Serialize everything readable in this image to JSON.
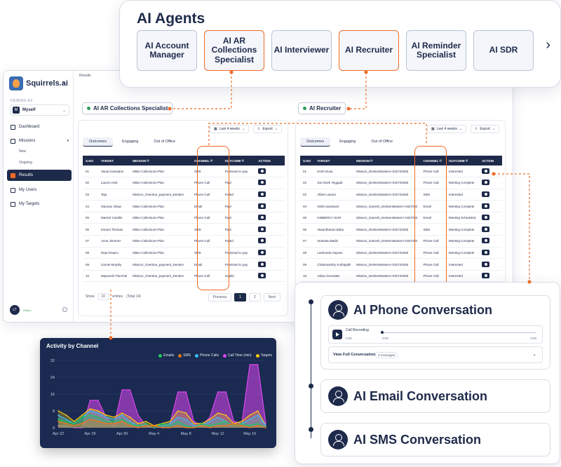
{
  "agents": {
    "title": "AI Agents",
    "items": [
      {
        "label": "AI Account Manager",
        "active": false
      },
      {
        "label": "AI AR Collections Specialist",
        "active": true
      },
      {
        "label": "AI Interviewer",
        "active": false
      },
      {
        "label": "AI Recruiter",
        "active": true
      },
      {
        "label": "AI Reminder Specialist",
        "active": false
      },
      {
        "label": "AI SDR",
        "active": false
      }
    ],
    "next_icon": "chevron-right-icon"
  },
  "app": {
    "logo_text": "Squirrels.ai",
    "viewing_label": "VIEWING AS",
    "user_initial": "M",
    "user_name": "Myself",
    "breadcrumb": "Results",
    "nav": {
      "dashboard": "Dashboard",
      "missions": "Missions",
      "new": "New",
      "ongoing": "Ongoing",
      "results": "Results",
      "my_users": "My Users",
      "my_targets": "My Targets"
    },
    "footer_initials": "LT",
    "footer_status": "Online"
  },
  "left_panel": {
    "tag": "AI AR Collections Specialist",
    "range": "Last 4 weeks",
    "export": "Export",
    "tabs": [
      "Outcomes",
      "Engaging",
      "Out of Office"
    ],
    "headers": [
      "S.NO",
      "TARGET",
      "MISSION",
      "CHANNEL",
      "OUTCOME",
      "ACTION"
    ],
    "rows": [
      [
        "01",
        "Vania Granados",
        "Milan-Collections-Plan",
        "SMS",
        "Promised to pay"
      ],
      [
        "02",
        "Lauren Hart",
        "Milan-Collections-Plan",
        "Phone Call",
        "Paid"
      ],
      [
        "03",
        "Teja",
        "Mission_Overdue_payment_Denken",
        "Phone Call",
        "Failed"
      ],
      [
        "04",
        "Xiaonan Shaw",
        "Milan-Collections-Plan",
        "Email",
        "Paid"
      ],
      [
        "05",
        "Marisol Castillo",
        "Milan-Collections-Plan",
        "Phone Call",
        "Paid"
      ],
      [
        "06",
        "Kimani Thomas",
        "Milan-Collections-Plan",
        "SMS",
        "Paid"
      ],
      [
        "07",
        "Anna Jimenez",
        "Milan-Collections-Plan",
        "Phone Call",
        "Failed"
      ],
      [
        "08",
        "Deja Draaco",
        "Milan-Collections-Plan",
        "SMS",
        "Promised to pay"
      ],
      [
        "09",
        "Carole Murphy",
        "Mission_Overdue_payment_Denken",
        "Email",
        "Promised to pay"
      ],
      [
        "10",
        "Mayuresh Panchal",
        "Mission_Overdue_payment_Denken",
        "Phone Call",
        "Invalid"
      ]
    ],
    "show_label": "Show",
    "show_value": "10",
    "entries_label": "entries",
    "total_label": "(Total 14)",
    "prev": "Previous",
    "pages": [
      "1",
      "2"
    ],
    "next": "Next"
  },
  "right_panel": {
    "tag": "AI Recruiter",
    "range": "Last 4 weeks",
    "export": "Export",
    "tabs": [
      "Outcomes",
      "Engaging",
      "Out of Office"
    ],
    "headers": [
      "S.NO",
      "TARGET",
      "MISSION",
      "CHANNEL",
      "OUTCOME",
      "ACTION"
    ],
    "rows": [
      [
        "01",
        "Krish Dusa",
        "Mission_DenkenMasterA-032720250",
        "Phone Call",
        "Interested"
      ],
      [
        "02",
        "Sai Vivek Yeggadi",
        "Mission_DenkenMasterA-032720250",
        "Phone Call",
        "Meeting Complete"
      ],
      [
        "03",
        "Albert Lanum",
        "Mission_DenkenMasterA-032720250",
        "SMS",
        "Interested"
      ],
      [
        "04",
        "Ninfa Sandoval",
        "Mission_Ganesh_DenkenMasterA-0327202",
        "Email",
        "Meeting Complete"
      ],
      [
        "05",
        "KIMBERLY SIAR",
        "Mission_Ganesh_DenkenMasterA-0327202",
        "Email",
        "Meeting Scheduled"
      ],
      [
        "06",
        "Vasantharani Babu",
        "Mission_DenkenMasterA-032720250",
        "SMS",
        "Meeting Complete"
      ],
      [
        "07",
        "Venkata Madiri",
        "Mission_Ganesh_DenkenMasterA-0327202",
        "Phone Call",
        "Meeting Complete"
      ],
      [
        "08",
        "Lashonda Haynes",
        "Mission_DenkenMasterA-032720250",
        "Phone Call",
        "Meeting Complete"
      ],
      [
        "09",
        "Chakravarthy Kothapalli",
        "Mission_DenkenMasterA-032720250",
        "Phone Call",
        "Interested"
      ],
      [
        "10",
        "Julian Gonzales",
        "Mission_DenkenMasterA-032720250",
        "Phone Call",
        "Interested"
      ]
    ]
  },
  "chart_data": {
    "type": "area",
    "title": "Activity by Channel",
    "xlabel": "",
    "ylabel": "",
    "ylim": [
      0,
      32
    ],
    "yticks": [
      0,
      8,
      16,
      24,
      32
    ],
    "x_tick_labels": [
      "Apr 22",
      "Apr 26",
      "Apr 30",
      "May 4",
      "May 8",
      "May 12",
      "May 16"
    ],
    "x": [
      "Apr 22",
      "Apr 23",
      "Apr 24",
      "Apr 25",
      "Apr 26",
      "Apr 27",
      "Apr 28",
      "Apr 29",
      "Apr 30",
      "May 1",
      "May 2",
      "May 3",
      "May 4",
      "May 5",
      "May 6",
      "May 7",
      "May 8",
      "May 9",
      "May 10",
      "May 11",
      "May 12",
      "May 13",
      "May 14",
      "May 15",
      "May 16",
      "May 17",
      "May 18"
    ],
    "legend_position": "top-right",
    "grid": true,
    "series": [
      {
        "name": "Emails",
        "color": "#22c55e",
        "values": [
          4,
          3,
          2,
          5,
          6,
          5,
          3,
          3,
          4,
          2,
          1,
          2,
          0,
          2,
          1,
          3,
          1,
          0,
          2,
          1,
          2,
          3,
          1,
          2,
          1,
          2,
          0
        ]
      },
      {
        "name": "SMS",
        "color": "#f97316",
        "values": [
          3,
          2,
          1,
          2,
          4,
          3,
          2,
          2,
          3,
          1,
          0,
          1,
          1,
          0,
          0,
          1,
          0,
          0,
          1,
          0,
          1,
          1,
          2,
          1,
          0,
          1,
          0
        ]
      },
      {
        "name": "Phone Calls",
        "color": "#38bdf8",
        "values": [
          6,
          4,
          2,
          5,
          8,
          7,
          5,
          4,
          6,
          3,
          1,
          2,
          0,
          1,
          2,
          5,
          4,
          1,
          1,
          3,
          5,
          3,
          1,
          2,
          4,
          6,
          1
        ]
      },
      {
        "name": "Call Time (min)",
        "color": "#d946ef",
        "values": [
          1,
          1,
          0,
          0,
          13,
          13,
          5,
          1,
          18,
          18,
          6,
          1,
          0,
          1,
          2,
          17,
          17,
          3,
          1,
          5,
          17,
          17,
          3,
          2,
          30,
          30,
          2
        ]
      },
      {
        "name": "Targets",
        "color": "#facc15",
        "values": [
          8,
          6,
          3,
          6,
          9,
          8,
          6,
          5,
          7,
          5,
          2,
          3,
          1,
          2,
          3,
          8,
          7,
          2,
          2,
          4,
          7,
          6,
          2,
          3,
          6,
          8,
          1
        ]
      }
    ]
  },
  "conversations": {
    "phone": {
      "title": "AI Phone Conversation",
      "recording_label": "Call Recording",
      "t_start": "0:00",
      "t_current": "0:00",
      "t_end": "0:00",
      "view_full": "View Full Conversation",
      "messages_badge": "3 messages"
    },
    "email": {
      "title": "AI Email Conversation"
    },
    "sms": {
      "title": "AI SMS Conversation"
    }
  },
  "colors": {
    "accent": "#f06a25",
    "navy": "#1e2a4a",
    "chart_bg": "#1b2a50"
  }
}
